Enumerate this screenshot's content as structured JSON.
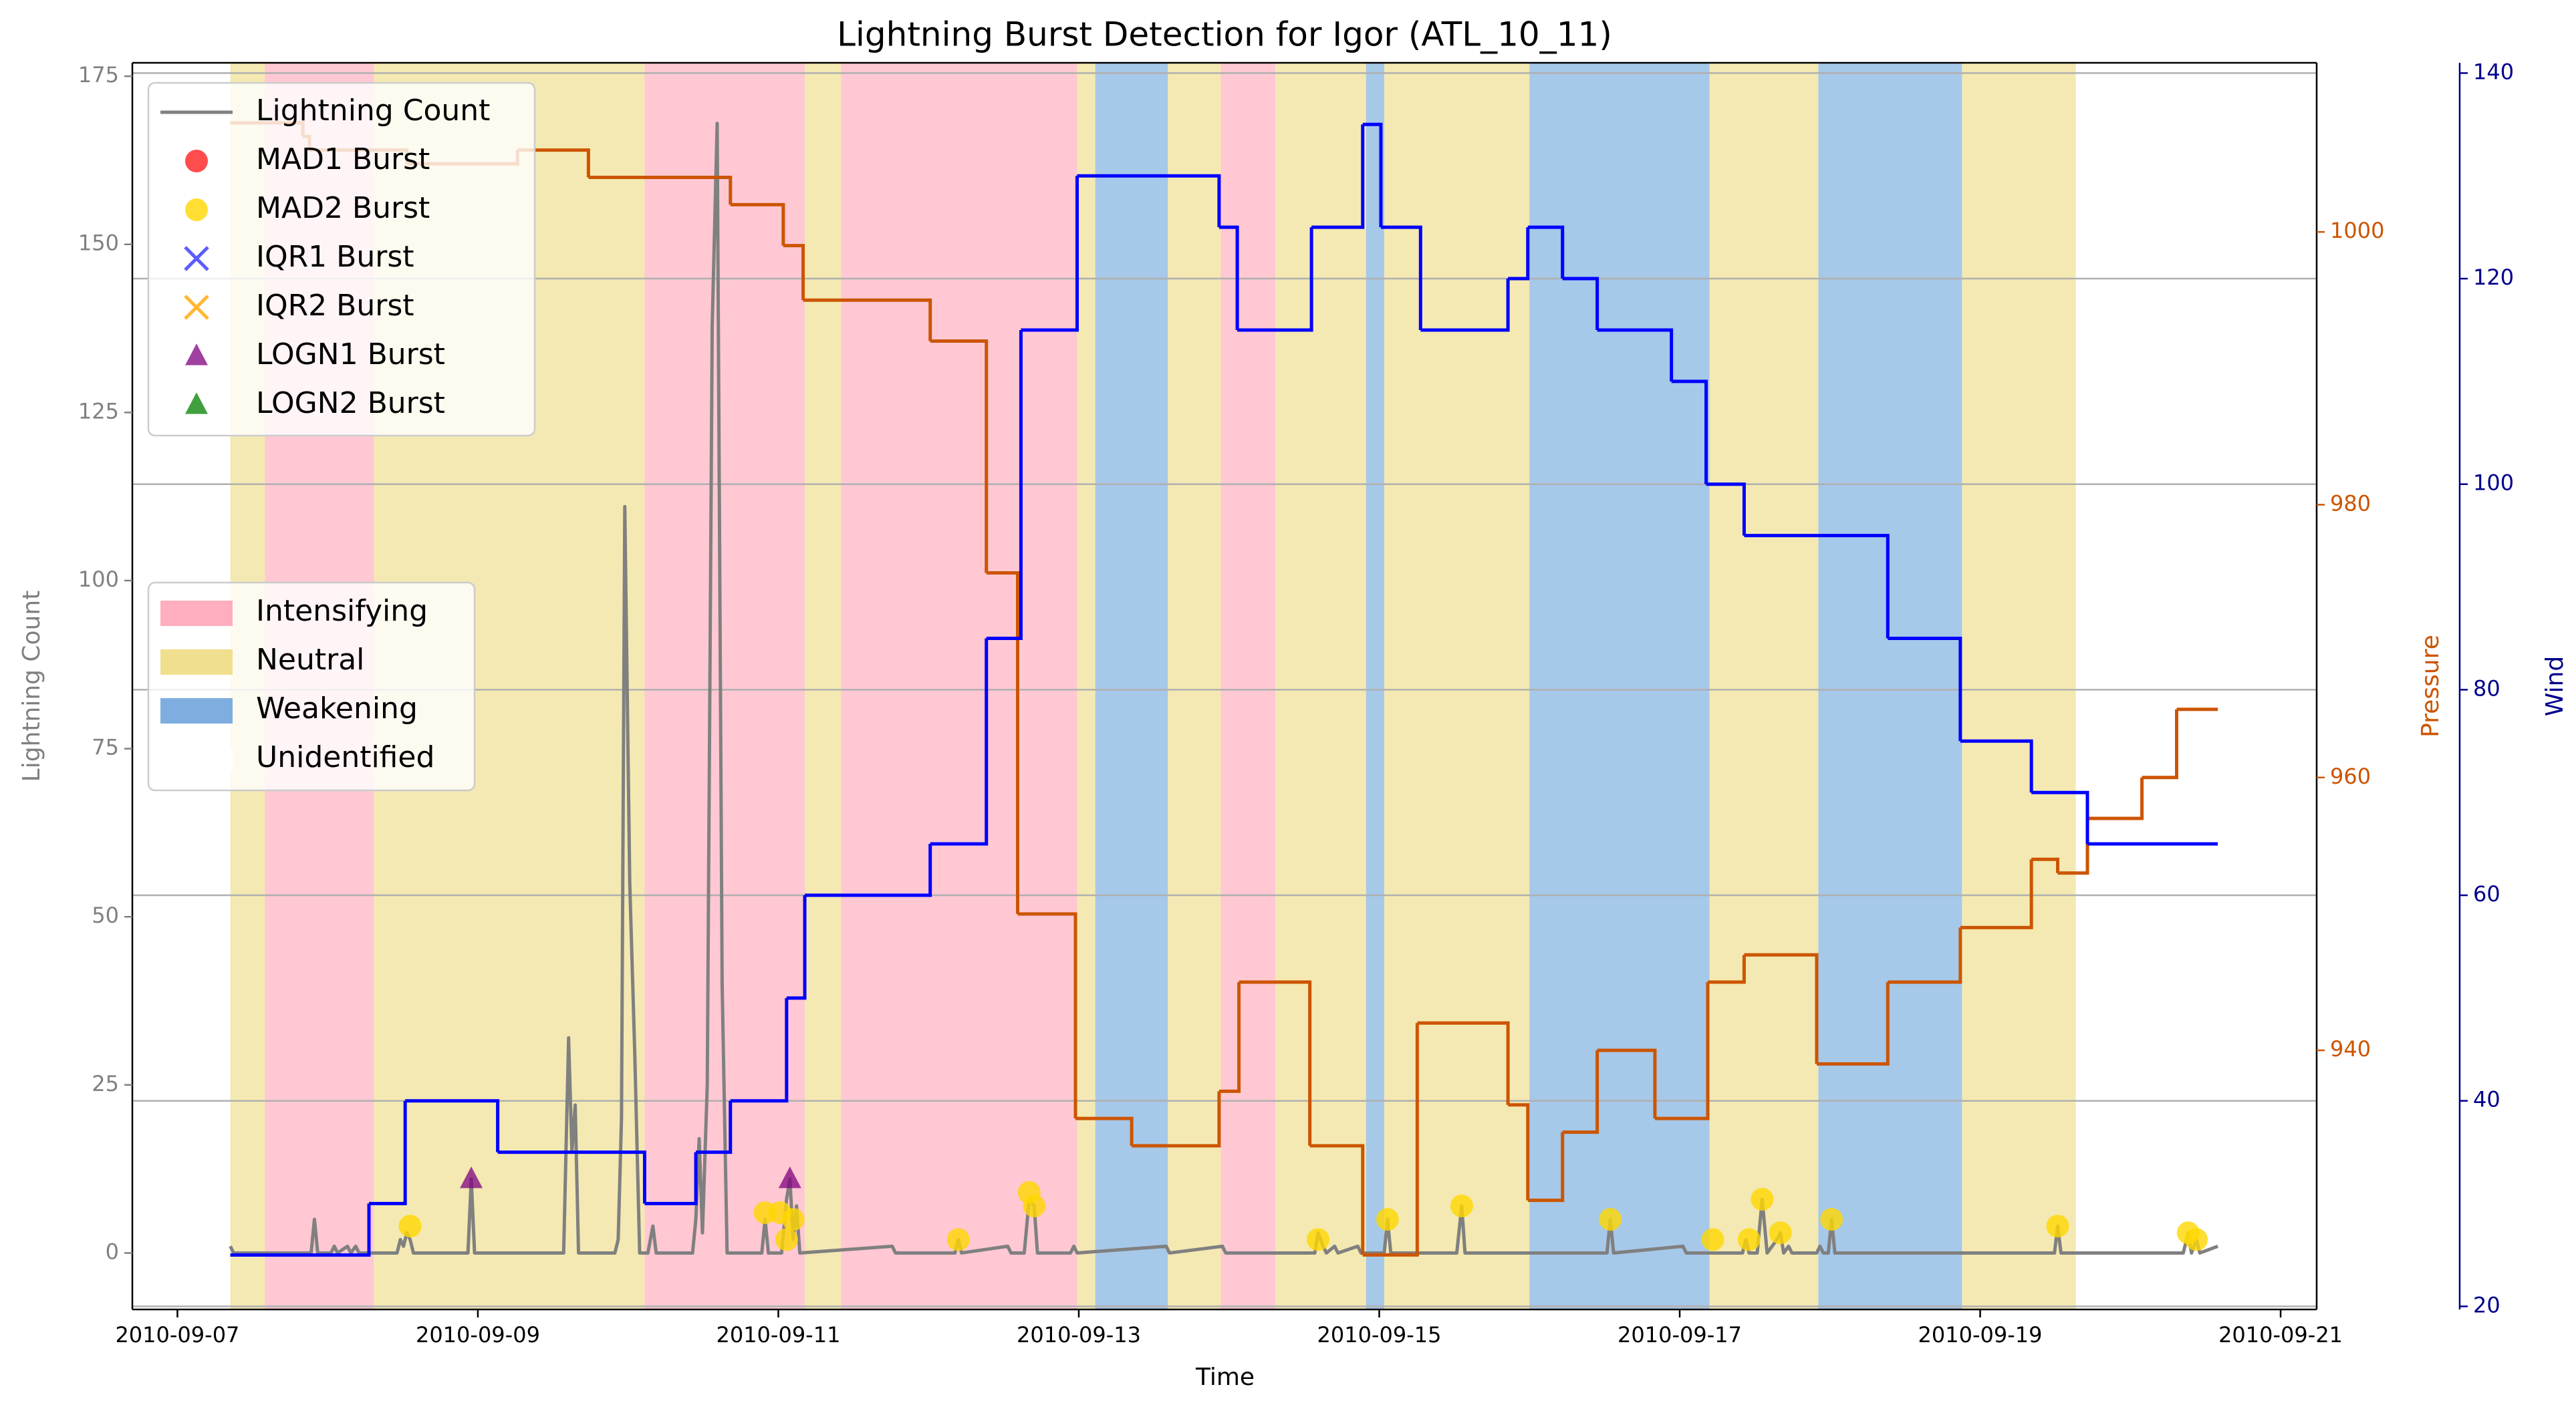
{
  "chart_data": {
    "type": "line",
    "title": "Lightning Burst Detection for Igor (ATL_10_11)",
    "xlabel": "Time",
    "ylabel": "Lightning Count",
    "y2label": "Pressure",
    "y3label": "Wind",
    "xlim": [
      6.7,
      21.24
    ],
    "xticks": [
      {
        "value": 7,
        "label": "2010-09-07"
      },
      {
        "value": 9,
        "label": "2010-09-09"
      },
      {
        "value": 11,
        "label": "2010-09-11"
      },
      {
        "value": 13,
        "label": "2010-09-13"
      },
      {
        "value": 15,
        "label": "2010-09-15"
      },
      {
        "value": 17,
        "label": "2010-09-17"
      },
      {
        "value": 19,
        "label": "2010-09-19"
      },
      {
        "value": 21,
        "label": "2010-09-21"
      }
    ],
    "ylim": [
      -8.4,
      177
    ],
    "yticks": [
      0,
      25,
      50,
      75,
      100,
      125,
      150,
      175
    ],
    "y2lim": [
      921,
      1012.4
    ],
    "y2ticks": [
      940,
      960,
      980,
      1000
    ],
    "y3lim": [
      19.7,
      141
    ],
    "y3ticks": [
      20,
      40,
      60,
      80,
      100,
      120,
      140
    ],
    "grid": "y3",
    "series": [
      {
        "name": "Lightning Count",
        "color": "#808080",
        "x": [
          7.352,
          7.374,
          7.89,
          7.912,
          7.934,
          8.022,
          8.044,
          8.066,
          8.132,
          8.154,
          8.187,
          8.209,
          8.462,
          8.484,
          8.505,
          8.527,
          8.549,
          8.571,
          8.934,
          8.956,
          8.978,
          9.571,
          9.604,
          9.626,
          9.648,
          9.67,
          9.912,
          9.934,
          9.956,
          9.978,
          10.011,
          10.044,
          10.077,
          10.132,
          10.165,
          10.187,
          10.429,
          10.451,
          10.473,
          10.495,
          10.527,
          10.56,
          10.593,
          10.626,
          10.659,
          10.89,
          10.912,
          10.934,
          11.022,
          11.055,
          11.077,
          11.099,
          11.121,
          11.143,
          11.758,
          11.78,
          12.176,
          12.198,
          12.22,
          12.527,
          12.549,
          12.637,
          12.67,
          12.703,
          12.725,
          12.945,
          12.967,
          12.989,
          13.582,
          13.604,
          13.956,
          13.978,
          14.571,
          14.593,
          14.626,
          14.648,
          14.703,
          14.725,
          14.857,
          14.879,
          15.033,
          15.055,
          15.077,
          15.516,
          15.549,
          15.571,
          16.516,
          16.538,
          16.56,
          17.022,
          17.044,
          17.418,
          17.44,
          17.462,
          17.516,
          17.549,
          17.582,
          17.648,
          17.67,
          17.692,
          17.725,
          17.747,
          17.912,
          17.934,
          17.956,
          17.989,
          18.011,
          18.033,
          19.495,
          19.516,
          19.538,
          20.352,
          20.385,
          20.407,
          20.44,
          20.462,
          20.582
        ],
        "values": [
          1,
          0,
          0,
          5,
          0,
          0,
          1,
          0,
          1,
          0,
          1,
          0,
          0,
          2,
          1,
          3,
          2,
          0,
          0,
          11,
          0,
          0,
          32,
          15,
          22,
          0,
          0,
          2,
          20,
          111,
          55,
          30,
          0,
          0,
          4,
          0,
          0,
          5,
          17,
          3,
          25,
          138,
          168,
          40,
          0,
          0,
          5,
          0,
          0,
          8,
          11,
          2,
          7,
          0,
          1,
          0,
          0,
          2,
          0,
          1,
          0,
          0,
          8,
          7,
          0,
          0,
          1,
          0,
          1,
          0,
          1,
          0,
          0,
          3,
          1,
          0,
          1,
          0,
          1,
          0,
          0,
          5,
          0,
          0,
          7,
          0,
          0,
          5,
          0,
          1,
          0,
          0,
          2,
          0,
          0,
          8,
          0,
          2,
          3,
          0,
          1,
          0,
          0,
          1,
          0,
          0,
          5,
          0,
          0,
          4,
          0,
          0,
          3,
          0,
          2,
          0,
          1
        ]
      }
    ],
    "pressure": {
      "color": "#cc5500",
      "axis": "y2",
      "drawstyle": "steps-post",
      "x": [
        7.352,
        7.835,
        7.879,
        8.527,
        9.264,
        9.736,
        10.681,
        11.033,
        11.165,
        12.011,
        12.385,
        12.593,
        12.978,
        13.352,
        13.934,
        14.066,
        14.538,
        14.89,
        15.253,
        15.857,
        15.989,
        16.22,
        16.451,
        16.835,
        17.187,
        17.429,
        17.912,
        18.385,
        18.868,
        19.341,
        19.516,
        19.714,
        20.077,
        20.308,
        20.582
      ],
      "values": [
        1008,
        1007,
        1006,
        1005,
        1006,
        1004,
        1002,
        999,
        995,
        992,
        975,
        950,
        935,
        933,
        937,
        945,
        933,
        925,
        942,
        936,
        929,
        934,
        940,
        935,
        945,
        947,
        939,
        945,
        949,
        954,
        953,
        957,
        960,
        965,
        965
      ]
    },
    "wind": {
      "color": "#0000ff",
      "axis": "y3",
      "drawstyle": "steps-post",
      "x": [
        7.352,
        8.275,
        8.516,
        9.132,
        10.11,
        10.451,
        10.681,
        11.055,
        11.176,
        12.011,
        12.385,
        12.615,
        12.989,
        13.934,
        14.055,
        14.549,
        14.89,
        15.011,
        15.275,
        15.857,
        15.989,
        16.22,
        16.451,
        16.945,
        17.176,
        17.429,
        18.385,
        18.868,
        19.341,
        19.714,
        20.582
      ],
      "values": [
        25,
        30,
        40,
        35,
        30,
        35,
        40,
        50,
        60,
        65,
        85,
        115,
        130,
        125,
        115,
        125,
        135,
        125,
        115,
        120,
        125,
        120,
        115,
        110,
        100,
        95,
        85,
        75,
        70,
        65,
        65
      ]
    },
    "bursts": [
      {
        "name": "MAD1 Burst",
        "color": "#ff2020",
        "marker": "circle",
        "x": [],
        "values": []
      },
      {
        "name": "MAD2 Burst",
        "color": "#ffd700",
        "marker": "circle",
        "x": [
          8.549,
          10.912,
          11.011,
          11.055,
          11.099,
          12.198,
          12.67,
          12.703,
          14.593,
          15.055,
          15.549,
          16.538,
          17.22,
          17.462,
          17.549,
          17.67,
          18.011,
          19.516,
          20.385,
          20.44
        ],
        "values": [
          4,
          6,
          6,
          2,
          5,
          2,
          9,
          7,
          2,
          5,
          7,
          5,
          2,
          2,
          8,
          3,
          5,
          4,
          3,
          2
        ]
      },
      {
        "name": "IQR1 Burst",
        "color": "#3333ff",
        "marker": "x",
        "x": [],
        "values": []
      },
      {
        "name": "IQR2 Burst",
        "color": "#ffa500",
        "marker": "x",
        "x": [],
        "values": []
      },
      {
        "name": "LOGN1 Burst",
        "color": "#800080",
        "marker": "triangle",
        "x": [
          8.956,
          11.077
        ],
        "values": [
          11,
          11
        ]
      },
      {
        "name": "LOGN2 Burst",
        "color": "#008000",
        "marker": "triangle",
        "x": [],
        "values": []
      }
    ],
    "regions": [
      {
        "name": "Intensifying",
        "color": "#ffaabb",
        "spans": [
          [
            7.582,
            8.308
          ],
          [
            10.11,
            11.176
          ],
          [
            11.418,
            12.989
          ],
          [
            13.945,
            14.308
          ]
        ]
      },
      {
        "name": "Neutral",
        "color": "#eedd88",
        "spans": [
          [
            7.352,
            7.582
          ],
          [
            8.308,
            10.11
          ],
          [
            11.176,
            11.418
          ],
          [
            12.989,
            13.11
          ],
          [
            13.593,
            13.945
          ],
          [
            14.308,
            14.912
          ],
          [
            15.033,
            16.0
          ],
          [
            17.198,
            17.923
          ],
          [
            18.879,
            19.637
          ]
        ]
      },
      {
        "name": "Weakening",
        "color": "#77aadd",
        "spans": [
          [
            13.11,
            13.593
          ],
          [
            14.912,
            15.033
          ],
          [
            16.0,
            17.198
          ],
          [
            17.923,
            18.879
          ]
        ]
      },
      {
        "name": "Unidentified",
        "color": "#ffffff",
        "spans": []
      }
    ]
  }
}
